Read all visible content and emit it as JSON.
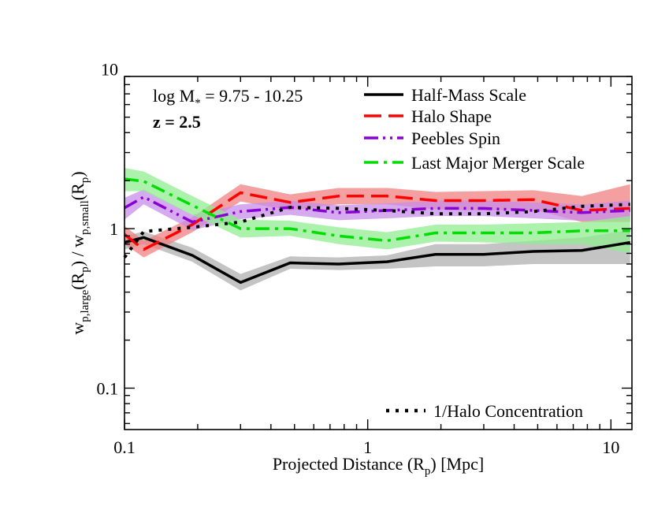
{
  "chart_data": {
    "type": "line",
    "title": "",
    "xlabel_parts": [
      "Projected Distance (R",
      "p",
      ") [Mpc]"
    ],
    "ylabel_parts": [
      "w",
      "p,large",
      "(R",
      "p",
      ") / w",
      "p,small",
      "(R",
      "p",
      ")"
    ],
    "xscale": "log",
    "yscale": "log",
    "xlim": [
      0.1,
      12.2
    ],
    "ylim": [
      0.055,
      9.0
    ],
    "x_ticks": [
      0.1,
      1,
      10
    ],
    "x_tick_labels": [
      "0.1",
      "1",
      "10"
    ],
    "y_ticks": [
      0.1,
      1,
      10
    ],
    "y_tick_labels": [
      "0.1",
      "1",
      "10"
    ],
    "grid": false,
    "legend_position": "top-right",
    "annotations": {
      "mass_prefix": "log M",
      "mass_sub": "*",
      "mass_range": " = 9.75 - 10.25",
      "redshift": "z = 2.5"
    },
    "x": [
      0.1,
      0.12,
      0.19,
      0.3,
      0.48,
      0.76,
      1.2,
      1.9,
      3.0,
      4.8,
      7.6,
      12.0
    ],
    "series": [
      {
        "name": "Half-Mass Scale",
        "color": "#000000",
        "band_color": "#b0b0b0",
        "style": "solid",
        "values": [
          0.82,
          0.88,
          0.68,
          0.46,
          0.61,
          0.6,
          0.62,
          0.69,
          0.69,
          0.72,
          0.73,
          0.82
        ],
        "lower": [
          0.74,
          0.8,
          0.62,
          0.41,
          0.56,
          0.55,
          0.56,
          0.58,
          0.58,
          0.6,
          0.6,
          0.6
        ],
        "upper": [
          0.9,
          0.96,
          0.76,
          0.52,
          0.67,
          0.66,
          0.68,
          0.8,
          0.8,
          0.84,
          0.88,
          0.98
        ]
      },
      {
        "name": "Halo Shape",
        "color": "#ff0000",
        "band_color": "#f08080",
        "style": "dashed",
        "values": [
          0.92,
          0.74,
          1.06,
          1.68,
          1.46,
          1.6,
          1.6,
          1.5,
          1.5,
          1.52,
          1.3,
          1.34
        ],
        "lower": [
          0.8,
          0.66,
          0.95,
          1.48,
          1.3,
          1.42,
          1.42,
          1.32,
          1.3,
          1.32,
          1.1,
          1.1
        ],
        "upper": [
          1.04,
          0.84,
          1.18,
          1.9,
          1.64,
          1.8,
          1.8,
          1.7,
          1.72,
          1.74,
          1.6,
          1.9
        ]
      },
      {
        "name": "Peebles Spin",
        "color": "#8a00d4",
        "band_color": "#c88ee8",
        "style": "dashdotdot",
        "values": [
          1.35,
          1.58,
          1.1,
          1.28,
          1.36,
          1.26,
          1.3,
          1.34,
          1.34,
          1.3,
          1.26,
          1.3
        ],
        "lower": [
          1.14,
          1.42,
          0.98,
          1.15,
          1.22,
          1.13,
          1.16,
          1.2,
          1.2,
          1.16,
          1.12,
          1.14
        ],
        "upper": [
          1.56,
          1.76,
          1.22,
          1.42,
          1.5,
          1.4,
          1.44,
          1.5,
          1.5,
          1.46,
          1.42,
          1.5
        ]
      },
      {
        "name": "Last Major Merger Scale",
        "color": "#00dd00",
        "band_color": "#90ee90",
        "style": "dashdot",
        "values": [
          2.05,
          1.98,
          1.4,
          1.0,
          1.0,
          0.9,
          0.84,
          0.94,
          0.94,
          0.94,
          0.97,
          0.97
        ],
        "lower": [
          1.72,
          1.72,
          1.22,
          0.88,
          0.9,
          0.8,
          0.74,
          0.83,
          0.82,
          0.8,
          0.8,
          0.7
        ],
        "upper": [
          2.4,
          2.28,
          1.6,
          1.14,
          1.12,
          1.02,
          0.95,
          1.06,
          1.06,
          1.08,
          1.1,
          1.2
        ]
      },
      {
        "name": "1/Halo Concentration",
        "color": "#000000",
        "style": "dotted",
        "values": [
          0.66,
          0.96,
          1.02,
          1.1,
          1.36,
          1.34,
          1.3,
          1.24,
          1.24,
          1.28,
          1.38,
          1.42
        ]
      }
    ]
  }
}
